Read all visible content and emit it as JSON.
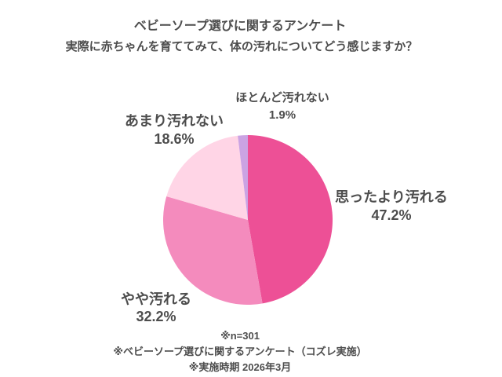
{
  "colors": {
    "background": "#ffffff",
    "text": "#4d4d4d"
  },
  "chart_data": {
    "type": "pie",
    "title": "ベビーソープ選びに関するアンケート",
    "subtitle": "実際に赤ちゃんを育ててみて、体の汚れについてどう感じますか？",
    "start_angle_deg": 0,
    "direction": "clockwise",
    "legend_position": "none",
    "labels_outside": true,
    "slices": [
      {
        "label": "思ったより汚れる",
        "value": 47.2,
        "pct_label": "47.2%",
        "color": "#ed5096"
      },
      {
        "label": "やや汚れる",
        "value": 32.2,
        "pct_label": "32.2%",
        "color": "#f48bbd"
      },
      {
        "label": "あまり汚れない",
        "value": 18.6,
        "pct_label": "18.6%",
        "color": "#ffd5e6"
      },
      {
        "label": "ほとんど汚れない",
        "value": 1.9,
        "pct_label": "1.9%",
        "color": "#cba3e3"
      }
    ],
    "footnotes": [
      "※n=301",
      "※ベビーソープ選びに関するアンケート（コズレ実施）",
      "※実施時期 2026年3月"
    ]
  }
}
